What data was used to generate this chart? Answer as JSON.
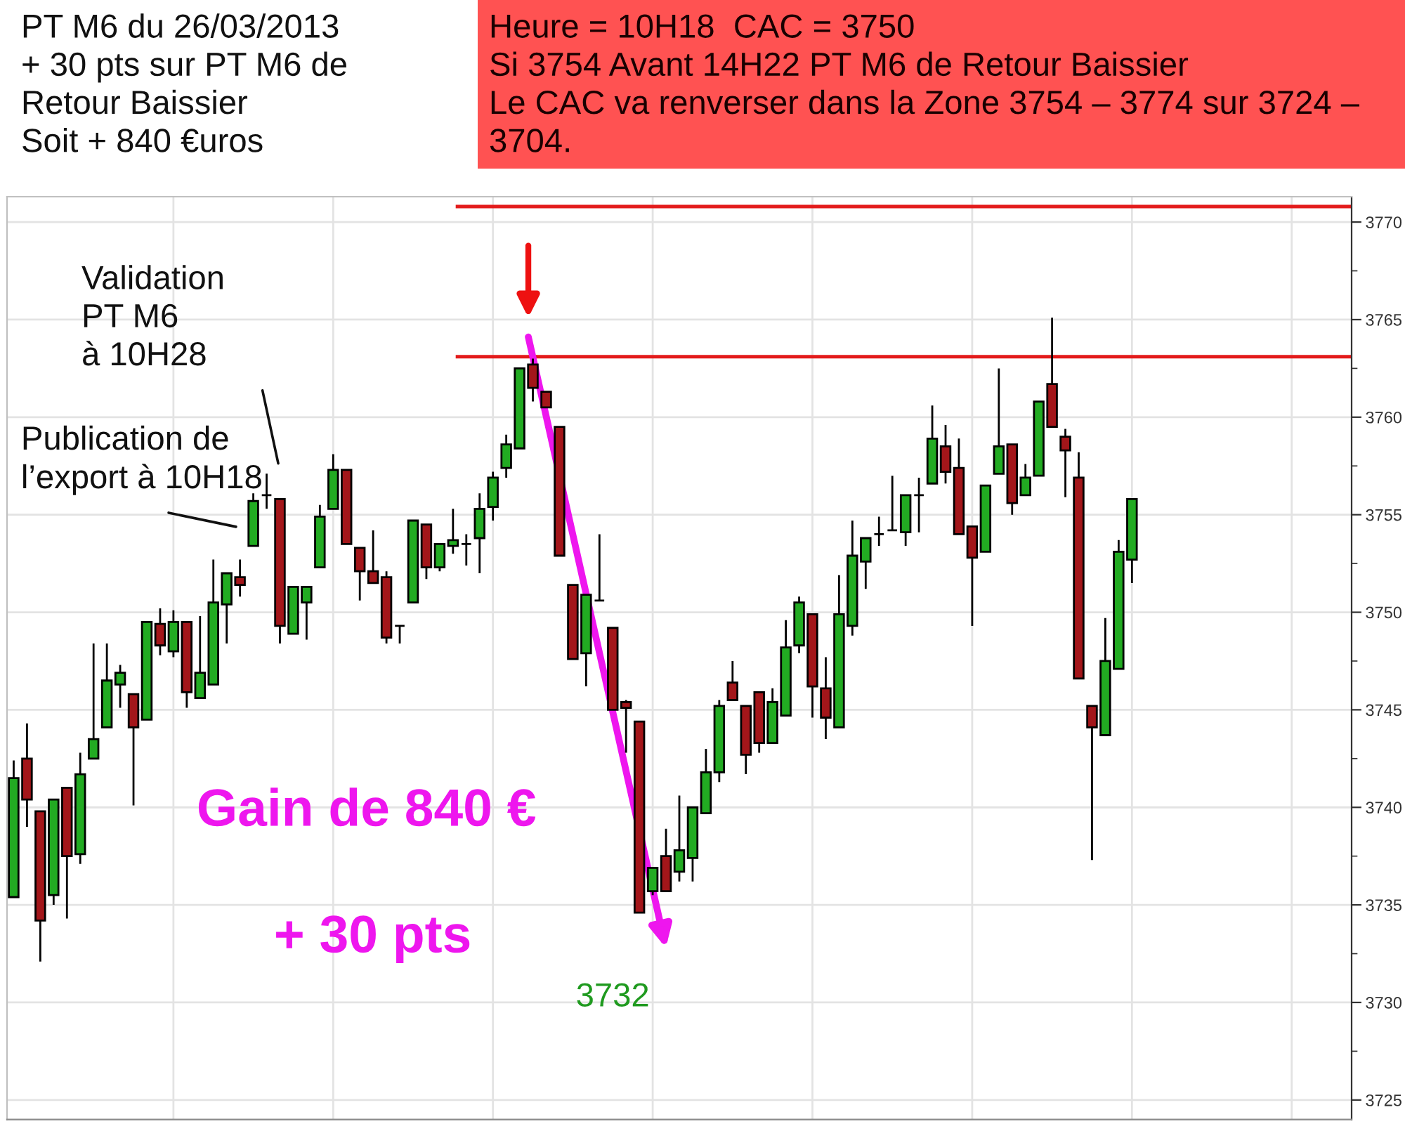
{
  "chart_data": {
    "type": "candlestick",
    "title": "PT M6 du 26/03/2013\n+ 30 pts sur PT M6 de\nRetour Baissier\nSoit + 840 €uros",
    "subtitle": "Heure = 10H18  CAC = 3750\nSi 3754 Avant 14H22 PT M6 de Retour Baissier\nLe CAC va renverser dans la Zone 3754 – 3774 sur 3724 –\n3704.",
    "annotations": [
      "Validation\nPT M6\nà 10H28",
      "Publication de\nl’export à 10H18",
      "Gain de 840 €",
      "+ 30 pts",
      "3732"
    ],
    "categories": [
      null,
      null,
      null,
      null,
      null,
      null,
      null,
      null,
      null,
      null,
      null,
      null,
      null,
      null,
      null,
      null,
      null,
      null,
      null,
      null,
      null,
      null,
      null,
      null,
      null,
      null,
      null,
      null,
      null,
      null,
      null,
      null,
      null,
      null,
      null,
      null,
      null,
      null,
      null,
      null,
      null,
      null,
      null,
      null,
      null,
      null,
      null,
      null,
      null,
      null,
      null,
      null,
      null,
      null,
      null,
      null,
      null,
      null,
      null,
      null,
      null,
      null,
      null,
      null,
      null,
      null,
      null,
      null,
      null,
      null,
      null,
      null,
      null,
      null,
      null,
      null,
      null,
      null,
      null,
      null,
      null,
      null,
      null,
      null,
      null,
      null,
      null,
      null,
      null,
      null,
      null,
      null,
      null,
      null,
      null,
      null,
      null,
      null,
      null,
      null,
      null
    ],
    "ohlc": [
      [
        3735.4,
        3742.4,
        3735.4,
        3741.5
      ],
      [
        3742.5,
        3744.3,
        3739.0,
        3740.4
      ],
      [
        3739.8,
        3739.8,
        3732.1,
        3734.2
      ],
      [
        3735.5,
        3740.4,
        3735.0,
        3740.4
      ],
      [
        3741.0,
        3741.0,
        3734.3,
        3737.5
      ],
      [
        3737.6,
        3742.8,
        3737.1,
        3741.7
      ],
      [
        3742.5,
        3748.4,
        3742.5,
        3743.5
      ],
      [
        3744.1,
        3748.4,
        3744.1,
        3746.5
      ],
      [
        3746.3,
        3747.3,
        3745.1,
        3746.9
      ],
      [
        3745.8,
        3745.8,
        3740.1,
        3744.1
      ],
      [
        3744.5,
        3749.5,
        3744.5,
        3749.5
      ],
      [
        3749.4,
        3750.2,
        3747.8,
        3748.3
      ],
      [
        3748.0,
        3750.1,
        3747.7,
        3749.5
      ],
      [
        3749.5,
        3749.5,
        3745.1,
        3745.9
      ],
      [
        3745.6,
        3749.8,
        3745.6,
        3746.9
      ],
      [
        3746.3,
        3752.7,
        3746.3,
        3750.5
      ],
      [
        3750.4,
        3752.0,
        3748.4,
        3752.0
      ],
      [
        3751.8,
        3752.7,
        3750.8,
        3751.4
      ],
      [
        3753.4,
        3756.1,
        3753.4,
        3755.7
      ],
      [
        3756.0,
        3757.1,
        3755.3,
        3756.0
      ],
      [
        3755.8,
        3755.8,
        3748.4,
        3749.3
      ],
      [
        3748.9,
        3751.3,
        3748.9,
        3751.3
      ],
      [
        3750.5,
        3751.3,
        3748.6,
        3751.3
      ],
      [
        3752.3,
        3755.5,
        3752.3,
        3754.9
      ],
      [
        3755.3,
        3758.1,
        3755.3,
        3757.3
      ],
      [
        3757.3,
        3757.3,
        3753.5,
        3753.5
      ],
      [
        3753.3,
        3753.3,
        3750.6,
        3752.1
      ],
      [
        3752.1,
        3754.2,
        3751.5,
        3751.5
      ],
      [
        3751.8,
        3752.1,
        3748.4,
        3748.7
      ],
      [
        3749.3,
        3749.3,
        3748.4,
        3749.3
      ],
      [
        3750.5,
        3754.7,
        3750.5,
        3754.7
      ],
      [
        3754.5,
        3754.5,
        3751.7,
        3752.3
      ],
      [
        3752.3,
        3753.5,
        3752.1,
        3753.5
      ],
      [
        3753.4,
        3755.3,
        3753.0,
        3753.7
      ],
      [
        3753.5,
        3754.0,
        3752.4,
        3753.5
      ],
      [
        3753.8,
        3756.1,
        3752.0,
        3755.3
      ],
      [
        3755.4,
        3757.2,
        3754.7,
        3756.9
      ],
      [
        3757.4,
        3759.1,
        3756.9,
        3758.6
      ],
      [
        3758.4,
        3762.5,
        3758.4,
        3762.5
      ],
      [
        3762.7,
        3763.0,
        3760.8,
        3761.5
      ],
      [
        3761.3,
        3761.3,
        3760.5,
        3760.5
      ],
      [
        3759.5,
        3759.5,
        3752.9,
        3752.9
      ],
      [
        3751.4,
        3751.4,
        3747.6,
        3747.6
      ],
      [
        3747.9,
        3750.9,
        3746.2,
        3750.9
      ],
      [
        3750.6,
        3754.0,
        3750.6,
        3750.6
      ],
      [
        3749.2,
        3749.2,
        3745.0,
        3745.0
      ],
      [
        3745.4,
        3745.5,
        3742.8,
        3745.1
      ],
      [
        3744.4,
        3744.4,
        3734.6,
        3734.6
      ],
      [
        3735.7,
        3736.9,
        3735.5,
        3736.9
      ],
      [
        3737.5,
        3738.9,
        3735.7,
        3735.7
      ],
      [
        3736.7,
        3740.6,
        3736.2,
        3737.8
      ],
      [
        3737.4,
        3740.0,
        3736.2,
        3740.0
      ],
      [
        3739.7,
        3743.0,
        3739.7,
        3741.8
      ],
      [
        3741.8,
        3745.5,
        3741.3,
        3745.2
      ],
      [
        3746.4,
        3747.5,
        3745.5,
        3745.5
      ],
      [
        3745.2,
        3745.2,
        3741.7,
        3742.7
      ],
      [
        3745.9,
        3745.9,
        3742.8,
        3743.3
      ],
      [
        3743.3,
        3746.1,
        3743.3,
        3745.4
      ],
      [
        3744.7,
        3749.6,
        3744.7,
        3748.2
      ],
      [
        3748.3,
        3750.8,
        3747.9,
        3750.5
      ],
      [
        3749.9,
        3749.9,
        3744.6,
        3746.2
      ],
      [
        3746.1,
        3747.7,
        3743.5,
        3744.6
      ],
      [
        3744.1,
        3751.9,
        3744.1,
        3749.9
      ],
      [
        3749.3,
        3754.7,
        3748.8,
        3752.9
      ],
      [
        3752.6,
        3753.8,
        3751.2,
        3753.8
      ],
      [
        3754.0,
        3754.9,
        3753.4,
        3754.0
      ],
      [
        3754.2,
        3757.0,
        3754.2,
        3754.2
      ],
      [
        3754.1,
        3756.0,
        3753.4,
        3756.0
      ],
      [
        3756.0,
        3756.9,
        3754.1,
        3756.0
      ],
      [
        3756.6,
        3760.6,
        3756.6,
        3758.9
      ],
      [
        3758.5,
        3759.6,
        3756.6,
        3757.2
      ],
      [
        3757.4,
        3758.9,
        3754.0,
        3754.0
      ],
      [
        3754.4,
        3754.4,
        3749.3,
        3752.8
      ],
      [
        3753.1,
        3756.5,
        3753.1,
        3756.5
      ],
      [
        3757.1,
        3762.5,
        3757.1,
        3758.5
      ],
      [
        3758.6,
        3758.6,
        3755.0,
        3755.6
      ],
      [
        3756.0,
        3757.6,
        3756.0,
        3756.9
      ],
      [
        3757.0,
        3760.8,
        3757.0,
        3760.8
      ],
      [
        3761.7,
        3765.1,
        3759.5,
        3759.5
      ],
      [
        3759.0,
        3759.4,
        3755.9,
        3758.3
      ],
      [
        3756.9,
        3758.2,
        3746.6,
        3746.6
      ],
      [
        3745.2,
        3745.2,
        3737.3,
        3744.1
      ],
      [
        3743.7,
        3749.7,
        3743.7,
        3747.5
      ],
      [
        3747.1,
        3753.7,
        3747.1,
        3753.1
      ],
      [
        3752.7,
        3755.8,
        3751.5,
        3755.8
      ],
      null,
      null,
      null,
      null,
      null,
      null,
      null,
      null,
      null,
      null,
      null,
      null,
      null,
      null,
      null,
      null
    ],
    "colors": [
      "#22ab22",
      "#a3161a",
      "#a3161a",
      "#22ab22",
      "#a3161a",
      "#22ab22",
      "#22ab22",
      "#22ab22",
      "#22ab22",
      "#a3161a",
      "#22ab22",
      "#a3161a",
      "#22ab22",
      "#a3161a",
      "#22ab22",
      "#22ab22",
      "#22ab22",
      "#a3161a",
      "#22ab22",
      "#000000",
      "#a3161a",
      "#22ab22",
      "#22ab22",
      "#22ab22",
      "#22ab22",
      "#a3161a",
      "#a3161a",
      "#a3161a",
      "#a3161a",
      "#000000",
      "#22ab22",
      "#a3161a",
      "#22ab22",
      "#22ab22",
      "#000000",
      "#22ab22",
      "#22ab22",
      "#22ab22",
      "#22ab22",
      "#a3161a",
      "#a3161a",
      "#a3161a",
      "#a3161a",
      "#22ab22",
      "#000000",
      "#a3161a",
      "#a3161a",
      "#a3161a",
      "#22ab22",
      "#a3161a",
      "#22ab22",
      "#22ab22",
      "#22ab22",
      "#22ab22",
      "#a3161a",
      "#a3161a",
      "#a3161a",
      "#22ab22",
      "#22ab22",
      "#22ab22",
      "#a3161a",
      "#a3161a",
      "#22ab22",
      "#22ab22",
      "#22ab22",
      "#000000",
      "#000000",
      "#22ab22",
      "#000000",
      "#22ab22",
      "#a3161a",
      "#a3161a",
      "#a3161a",
      "#22ab22",
      "#22ab22",
      "#a3161a",
      "#22ab22",
      "#22ab22",
      "#a3161a",
      "#a3161a",
      "#a3161a",
      "#a3161a",
      "#22ab22",
      "#22ab22",
      "#22ab22",
      null,
      null,
      null,
      null,
      null,
      null,
      null,
      null,
      null,
      null,
      null,
      null,
      null,
      null,
      null,
      null
    ],
    "ylim": [
      3724.0,
      3771.3
    ],
    "yticks": [
      3725,
      {
        "value": 3727.5,
        "label": null
      },
      3730,
      {
        "value": 3732.5,
        "label": null
      },
      3735,
      {
        "value": 3737.5,
        "label": null
      },
      3740,
      {
        "value": 3742.5,
        "label": null
      },
      3745,
      {
        "value": 3747.5,
        "label": null
      },
      3750,
      {
        "value": 3752.5,
        "label": null
      },
      3755,
      {
        "value": 3757.5,
        "label": null
      },
      3760,
      {
        "value": 3762.5,
        "label": null
      },
      3765,
      {
        "value": 3767.5,
        "label": null
      },
      3770
    ],
    "ref_lines": [
      {
        "axis": "y",
        "value": 3770.8,
        "color": "#e31b1b"
      },
      {
        "axis": "y",
        "value": 3763.1,
        "color": "#e31b1b"
      }
    ],
    "grid": true,
    "tick_labels": "y"
  }
}
